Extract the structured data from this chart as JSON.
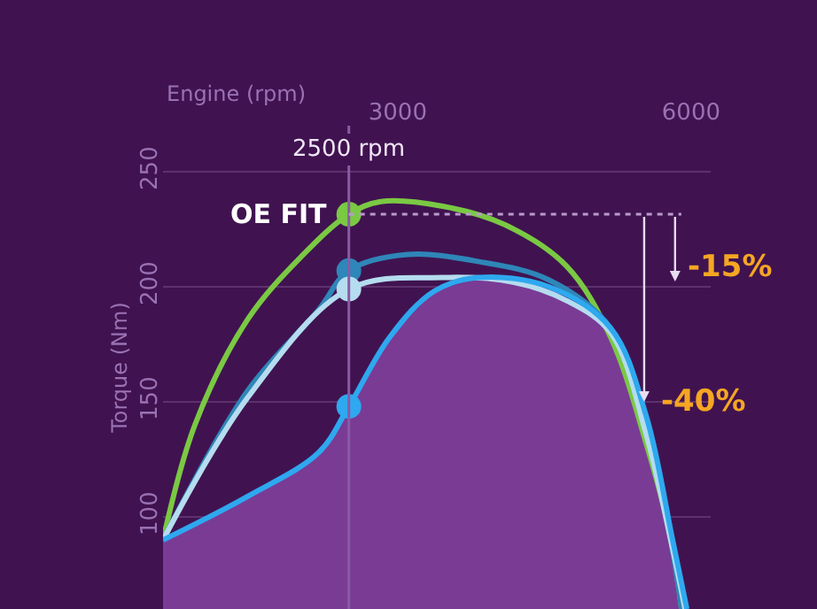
{
  "chart_data": {
    "type": "line",
    "xlabel": "Engine (rpm)",
    "ylabel": "Torque (Nm)",
    "xlim": [
      600,
      6200
    ],
    "xticks": [
      3000,
      6000
    ],
    "ylim": [
      60,
      270
    ],
    "yticks": [
      100,
      150,
      200,
      250
    ],
    "grid": "y",
    "marker": "none",
    "series": [
      {
        "type": "area",
        "color": "#7a3b95",
        "x": [
          600,
          1468,
          2192,
          2500,
          2916,
          3369,
          3821,
          4545,
          5178,
          5540,
          5811,
          5957
        ],
        "values": [
          90,
          109,
          128,
          148,
          178,
          198,
          204,
          200,
          182,
          144,
          90,
          60
        ]
      },
      {
        "color": "#7ac943",
        "x": [
          600,
          926,
          1468,
          2011,
          2500,
          2826,
          3459,
          4093,
          4726,
          5178,
          5540,
          5776,
          5903
        ],
        "values": [
          90,
          140,
          186,
          213,
          231.5,
          237,
          235,
          227,
          209,
          178,
          132,
          94,
          60
        ]
      },
      {
        "color": "#2f86b8",
        "x": [
          600,
          1468,
          2192,
          2500,
          3097,
          3821,
          4545,
          5178,
          5540,
          5776,
          5903
        ],
        "values": [
          90,
          155,
          190,
          207,
          214,
          211,
          203,
          182,
          140,
          94,
          60
        ]
      },
      {
        "color": "#b5dcef",
        "x": [
          600,
          1468,
          2500,
          3459,
          4183,
          4726,
          5178,
          5540,
          5811,
          5938
        ],
        "values": [
          90,
          152,
          199,
          204,
          202,
          194,
          180,
          136,
          86,
          60
        ]
      },
      {
        "color": "#2ea8ef",
        "x": [
          600,
          1468,
          2192,
          2500,
          2916,
          3369,
          3821,
          4545,
          5178,
          5540,
          5811,
          5957
        ],
        "values": [
          90,
          109,
          128,
          148,
          178,
          198,
          204,
          200,
          182,
          144,
          90,
          60
        ]
      },
      {
        "type": "scatter",
        "marker": "circle",
        "x": [
          2500,
          2500,
          2500,
          2500
        ],
        "values": [
          231.5,
          207,
          199,
          148
        ],
        "colors": [
          "#7ac943",
          "#2f86b8",
          "#b5dcef",
          "#2ea8ef"
        ]
      }
    ],
    "ref_lines": [
      {
        "axis": "x",
        "value": 2500,
        "label": "2500 rpm",
        "color": "#8a5aa6",
        "line_style": "solid"
      },
      {
        "axis": "y",
        "value": 231.5,
        "label": null,
        "color": "#b89ccb",
        "line_style": "dotted"
      }
    ],
    "annotations": [
      {
        "text": "OE FIT",
        "x": 2500,
        "y": 231.5
      },
      "-15%",
      {
        "text": "-40%",
        "x": 5520,
        "y": 150
      }
    ]
  }
}
